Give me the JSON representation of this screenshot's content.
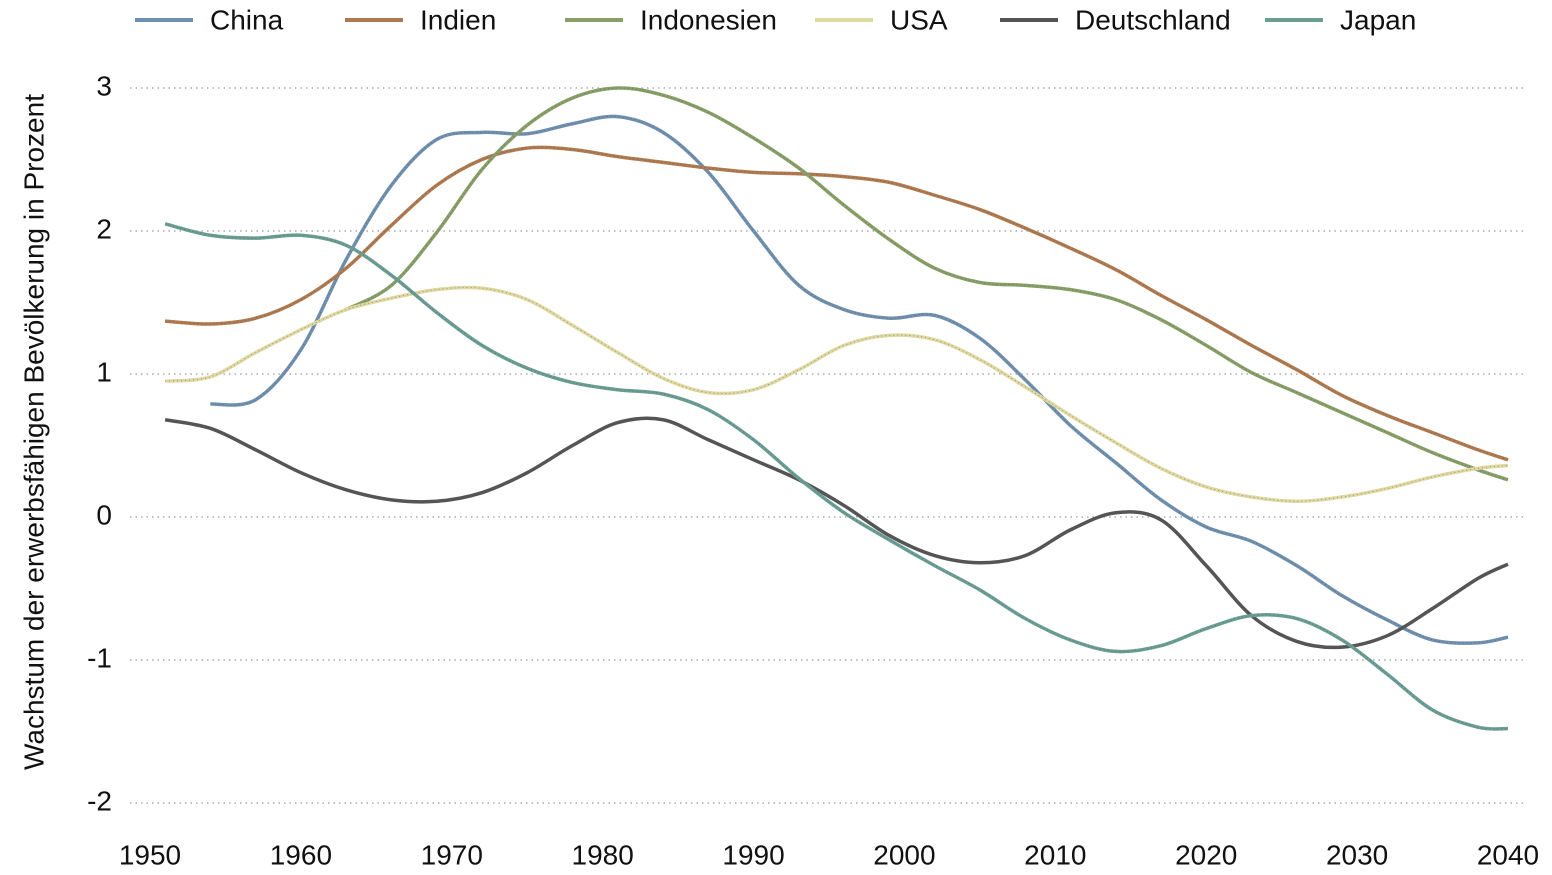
{
  "chart_data": {
    "type": "line",
    "y_label": "Wachstum der erwerbsfähigen Bevölkerung in Prozent",
    "x": [
      1951,
      1954,
      1957,
      1960,
      1963,
      1966,
      1969,
      1972,
      1975,
      1978,
      1981,
      1984,
      1987,
      1990,
      1993,
      1996,
      1999,
      2002,
      2005,
      2008,
      2011,
      2014,
      2017,
      2020,
      2023,
      2026,
      2029,
      2032,
      2035,
      2038,
      2040
    ],
    "series": [
      {
        "name": "China",
        "color": "#7090b0",
        "values": [
          null,
          0.79,
          0.82,
          1.17,
          1.8,
          2.32,
          2.64,
          2.69,
          2.68,
          2.75,
          2.8,
          2.69,
          2.41,
          2.0,
          1.62,
          1.45,
          1.39,
          1.41,
          1.25,
          0.96,
          0.64,
          0.38,
          0.12,
          -0.07,
          -0.17,
          -0.34,
          -0.55,
          -0.72,
          -0.86,
          -0.88,
          -0.84
        ]
      },
      {
        "name": "Indien",
        "color": "#b07a50",
        "values": [
          1.37,
          1.35,
          1.39,
          1.52,
          1.74,
          2.04,
          2.32,
          2.5,
          2.58,
          2.57,
          2.52,
          2.48,
          2.44,
          2.41,
          2.4,
          2.38,
          2.34,
          2.25,
          2.15,
          2.02,
          1.88,
          1.73,
          1.55,
          1.38,
          1.2,
          1.03,
          0.85,
          0.71,
          0.59,
          0.47,
          0.4
        ]
      },
      {
        "name": "Indonesien",
        "color": "#88a068",
        "values": [
          null,
          null,
          null,
          null,
          1.45,
          1.62,
          1.99,
          2.43,
          2.74,
          2.93,
          3.0,
          2.95,
          2.83,
          2.65,
          2.44,
          2.18,
          1.94,
          1.74,
          1.64,
          1.62,
          1.59,
          1.52,
          1.38,
          1.2,
          1.01,
          0.87,
          0.73,
          0.59,
          0.45,
          0.33,
          0.26
        ]
      },
      {
        "name": "USA",
        "color": "#e0d8a0",
        "values": [
          0.95,
          0.98,
          1.15,
          1.31,
          1.45,
          1.53,
          1.59,
          1.6,
          1.52,
          1.34,
          1.15,
          0.97,
          0.87,
          0.89,
          1.03,
          1.2,
          1.27,
          1.24,
          1.1,
          0.91,
          0.71,
          0.52,
          0.34,
          0.21,
          0.14,
          0.11,
          0.14,
          0.2,
          0.28,
          0.34,
          0.36
        ]
      },
      {
        "name": "Deutschland",
        "color": "#555555",
        "values": [
          0.68,
          0.62,
          0.47,
          0.31,
          0.19,
          0.12,
          0.11,
          0.17,
          0.31,
          0.5,
          0.66,
          0.68,
          0.54,
          0.4,
          0.26,
          0.08,
          -0.13,
          -0.27,
          -0.32,
          -0.27,
          -0.09,
          0.03,
          -0.02,
          -0.34,
          -0.69,
          -0.87,
          -0.91,
          -0.83,
          -0.64,
          -0.43,
          -0.33
        ]
      },
      {
        "name": "Japan",
        "color": "#6a9e94",
        "values": [
          2.05,
          1.97,
          1.95,
          1.97,
          1.9,
          1.69,
          1.43,
          1.2,
          1.04,
          0.94,
          0.89,
          0.86,
          0.75,
          0.54,
          0.27,
          0.03,
          -0.16,
          -0.34,
          -0.51,
          -0.71,
          -0.86,
          -0.94,
          -0.9,
          -0.78,
          -0.69,
          -0.71,
          -0.86,
          -1.1,
          -1.35,
          -1.47,
          -1.48
        ]
      }
    ],
    "xlim": [
      1950,
      2040
    ],
    "xticks": [
      1950,
      1960,
      1970,
      1980,
      1990,
      2000,
      2010,
      2020,
      2030,
      2040
    ],
    "ylim": [
      -2,
      3
    ],
    "yticks": [
      -2,
      -1,
      0,
      1,
      2,
      3
    ],
    "grid": true
  }
}
